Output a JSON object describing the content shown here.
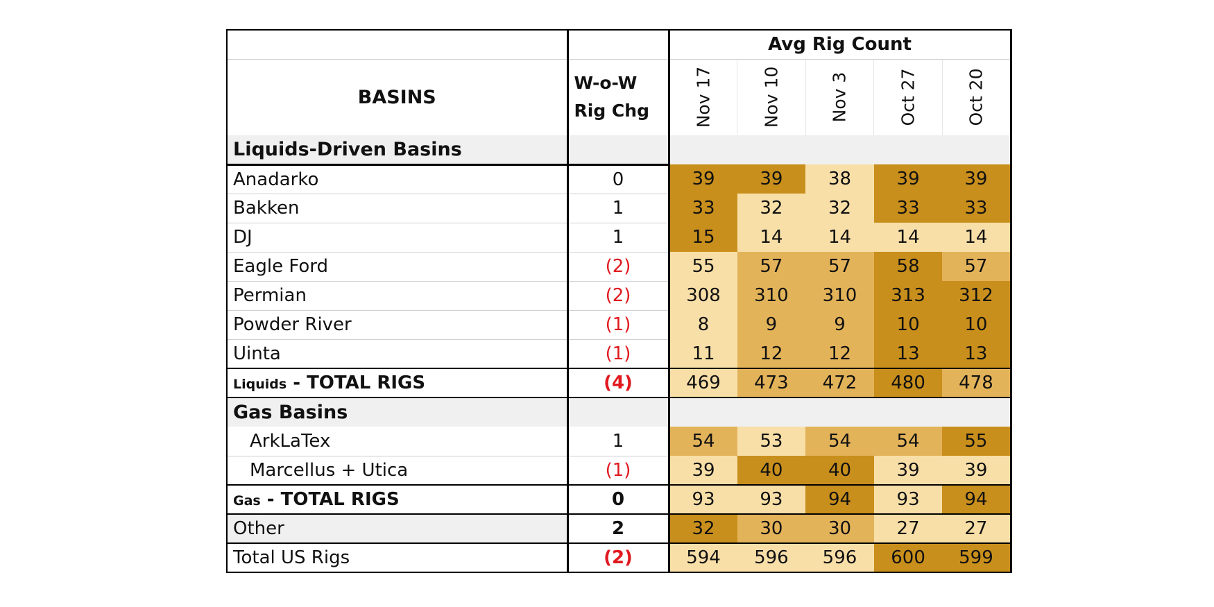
{
  "header": {
    "group_title": "Avg Rig Count",
    "basins_label": "BASINS",
    "wow_label_line1": "W-o-W",
    "wow_label_line2": "Rig Chg",
    "dates": [
      "Nov 17",
      "Nov 10",
      "Nov 3",
      "Oct 27",
      "Oct 20"
    ]
  },
  "sections": {
    "liquids": "Liquids-Driven Basins",
    "gas": "Gas Basins"
  },
  "rows": {
    "anadarko": {
      "name": "Anadarko",
      "chg": "0",
      "values": [
        "39",
        "39",
        "38",
        "39",
        "39"
      ]
    },
    "bakken": {
      "name": "Bakken",
      "chg": "1",
      "values": [
        "33",
        "32",
        "32",
        "33",
        "33"
      ]
    },
    "dj": {
      "name": "DJ",
      "chg": "1",
      "values": [
        "15",
        "14",
        "14",
        "14",
        "14"
      ]
    },
    "eagle_ford": {
      "name": "Eagle Ford",
      "chg": "(2)",
      "values": [
        "55",
        "57",
        "57",
        "58",
        "57"
      ]
    },
    "permian": {
      "name": "Permian",
      "chg": "(2)",
      "values": [
        "308",
        "310",
        "310",
        "313",
        "312"
      ]
    },
    "powder_river": {
      "name": "Powder River",
      "chg": "(1)",
      "values": [
        "8",
        "9",
        "9",
        "10",
        "10"
      ]
    },
    "uinta": {
      "name": "Uinta",
      "chg": "(1)",
      "values": [
        "11",
        "12",
        "12",
        "13",
        "13"
      ]
    },
    "liquids_total": {
      "name_prefix": "Liquids",
      "name_suffix": " - TOTAL RIGS",
      "chg": "(4)",
      "values": [
        "469",
        "473",
        "472",
        "480",
        "478"
      ]
    },
    "arklatex": {
      "name": "ArkLaTex",
      "chg": "1",
      "values": [
        "54",
        "53",
        "54",
        "54",
        "55"
      ]
    },
    "marcellus": {
      "name": "Marcellus + Utica",
      "chg": "(1)",
      "values": [
        "39",
        "40",
        "40",
        "39",
        "39"
      ]
    },
    "gas_total": {
      "name_prefix": "Gas",
      "name_suffix": " - TOTAL RIGS",
      "chg": "0",
      "values": [
        "93",
        "93",
        "94",
        "93",
        "94"
      ]
    },
    "other": {
      "name": "Other",
      "chg": "2",
      "values": [
        "32",
        "30",
        "30",
        "27",
        "27"
      ]
    },
    "total_us": {
      "name": "Total US Rigs",
      "chg": "(2)",
      "values": [
        "594",
        "596",
        "596",
        "600",
        "599"
      ]
    }
  },
  "heat_colors": {
    "light": "#f8dfa8",
    "medium": "#e3b35a",
    "dark": "#c98f1c"
  },
  "negative_color": "#e0191f"
}
